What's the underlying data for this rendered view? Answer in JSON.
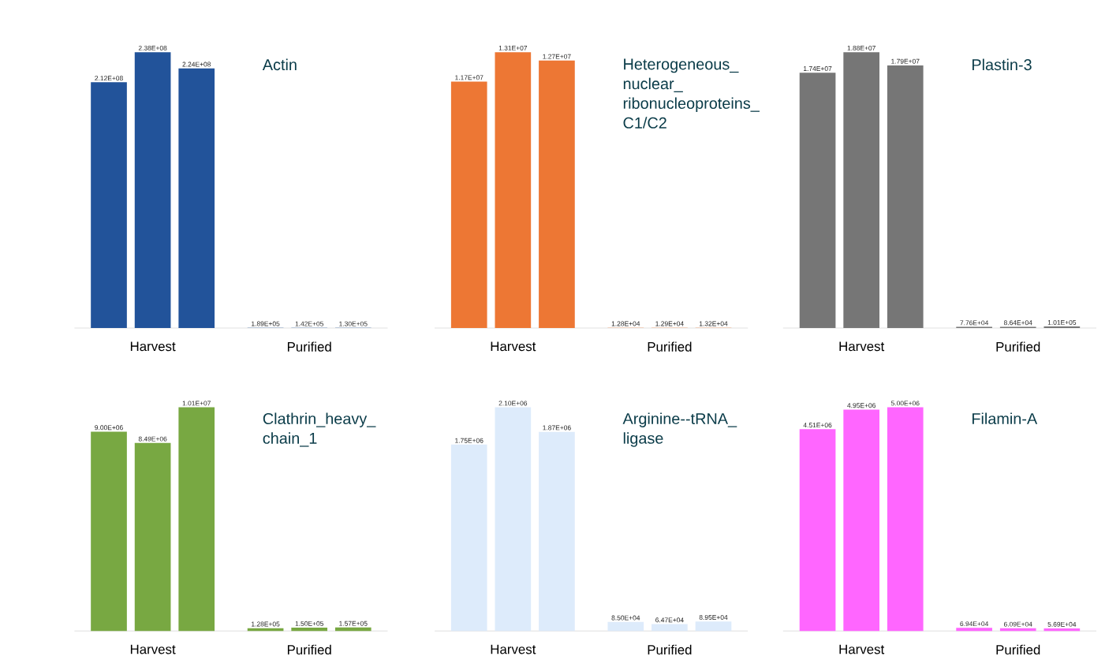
{
  "chart_data": [
    {
      "type": "bar",
      "title": "Actin",
      "categories": [
        "Harvest",
        "Purified"
      ],
      "series": [
        {
          "color": "#22539a",
          "values": [
            212000000,
            189000
          ],
          "value_labels": [
            "2.12E+08",
            "1.89E+05"
          ]
        },
        {
          "color": "#22539a",
          "values": [
            238000000,
            142000
          ],
          "value_labels": [
            "2.38E+08",
            "1.42E+05"
          ]
        },
        {
          "color": "#22539a",
          "values": [
            224000000,
            130000
          ],
          "value_labels": [
            "2.24E+08",
            "1.30E+05"
          ]
        }
      ]
    },
    {
      "type": "bar",
      "title": "Heterogeneous_nuclear_ribonucleoproteins_C1/C2",
      "categories": [
        "Harvest",
        "Purified"
      ],
      "series": [
        {
          "color": "#ed7734",
          "values": [
            11700000,
            12800
          ],
          "value_labels": [
            "1.17E+07",
            "1.28E+04"
          ]
        },
        {
          "color": "#ed7734",
          "values": [
            13100000,
            12900
          ],
          "value_labels": [
            "1.31E+07",
            "1.29E+04"
          ]
        },
        {
          "color": "#ed7734",
          "values": [
            12700000,
            13200
          ],
          "value_labels": [
            "1.27E+07",
            "1.32E+04"
          ]
        }
      ]
    },
    {
      "type": "bar",
      "title": "Plastin-3",
      "categories": [
        "Harvest",
        "Purified"
      ],
      "series": [
        {
          "color": "#767676",
          "values": [
            17400000,
            77600
          ],
          "value_labels": [
            "1.74E+07",
            "7.76E+04"
          ]
        },
        {
          "color": "#767676",
          "values": [
            18800000,
            86400
          ],
          "value_labels": [
            "1.88E+07",
            "8.64E+04"
          ]
        },
        {
          "color": "#767676",
          "values": [
            17900000,
            101000
          ],
          "value_labels": [
            "1.79E+07",
            "1.01E+05"
          ]
        }
      ]
    },
    {
      "type": "bar",
      "title": "Clathrin_heavy_chain_1",
      "categories": [
        "Harvest",
        "Purified"
      ],
      "series": [
        {
          "color": "#78a842",
          "values": [
            9000000,
            128000
          ],
          "value_labels": [
            "9.00E+06",
            "1.28E+05"
          ]
        },
        {
          "color": "#78a842",
          "values": [
            8490000,
            150000
          ],
          "value_labels": [
            "8.49E+06",
            "1.50E+05"
          ]
        },
        {
          "color": "#78a842",
          "values": [
            10100000,
            157000
          ],
          "value_labels": [
            "1.01E+07",
            "1.57E+05"
          ]
        }
      ]
    },
    {
      "type": "bar",
      "title": "Arginine--tRNA_ligase",
      "categories": [
        "Harvest",
        "Purified"
      ],
      "series": [
        {
          "color": "#ddebfb",
          "values": [
            1750000,
            85000
          ],
          "value_labels": [
            "1.75E+06",
            "8.50E+04"
          ]
        },
        {
          "color": "#ddebfb",
          "values": [
            2100000,
            64700
          ],
          "value_labels": [
            "2.10E+06",
            "6.47E+04"
          ]
        },
        {
          "color": "#ddebfb",
          "values": [
            1870000,
            89500
          ],
          "value_labels": [
            "1.87E+06",
            "8.95E+04"
          ]
        }
      ]
    },
    {
      "type": "bar",
      "title": "Filamin-A",
      "categories": [
        "Harvest",
        "Purified"
      ],
      "series": [
        {
          "color": "#ff66ff",
          "values": [
            4510000,
            69400
          ],
          "value_labels": [
            "4.51E+06",
            "6.94E+04"
          ]
        },
        {
          "color": "#ff66ff",
          "values": [
            4950000,
            60900
          ],
          "value_labels": [
            "4.95E+06",
            "6.09E+04"
          ]
        },
        {
          "color": "#ff66ff",
          "values": [
            5000000,
            56900
          ],
          "value_labels": [
            "5.00E+06",
            "5.69E+04"
          ]
        }
      ]
    }
  ]
}
